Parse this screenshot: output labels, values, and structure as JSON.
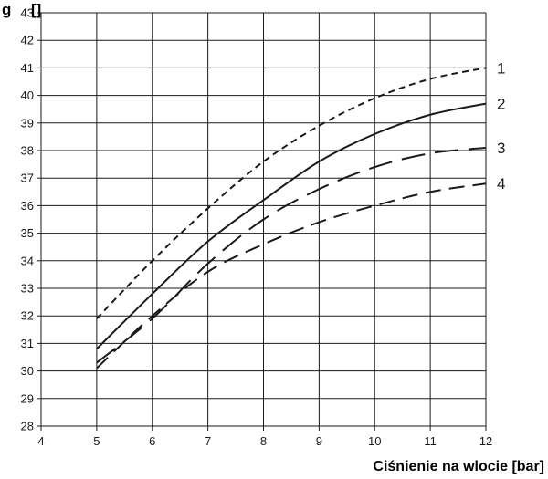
{
  "chart_data": {
    "type": "line",
    "title": "g",
    "title_suffix": "[]",
    "xlabel": "Ciśnienie na wlocie [bar]",
    "ylabel": "",
    "xlim": [
      4,
      12
    ],
    "ylim": [
      28,
      43
    ],
    "x_ticks": [
      4,
      5,
      6,
      7,
      8,
      9,
      10,
      11,
      12
    ],
    "y_ticks": [
      28,
      29,
      30,
      31,
      32,
      33,
      34,
      35,
      36,
      37,
      38,
      39,
      40,
      41,
      42,
      43
    ],
    "grid": true,
    "series": [
      {
        "name": "1",
        "style": "short-dash",
        "color": "#1a1a1a",
        "points": [
          [
            5,
            31.9
          ],
          [
            6,
            34.0
          ],
          [
            7,
            35.9
          ],
          [
            8,
            37.6
          ],
          [
            9,
            38.9
          ],
          [
            10,
            39.9
          ],
          [
            11,
            40.6
          ],
          [
            12,
            41.0
          ]
        ]
      },
      {
        "name": "2",
        "style": "solid",
        "color": "#1a1a1a",
        "points": [
          [
            5,
            30.8
          ],
          [
            6,
            32.8
          ],
          [
            7,
            34.7
          ],
          [
            8,
            36.2
          ],
          [
            9,
            37.6
          ],
          [
            10,
            38.6
          ],
          [
            11,
            39.3
          ],
          [
            12,
            39.7
          ]
        ]
      },
      {
        "name": "3",
        "style": "long-dash",
        "color": "#1a1a1a",
        "points": [
          [
            5,
            30.3
          ],
          [
            6,
            31.9
          ],
          [
            7,
            33.9
          ],
          [
            8,
            35.5
          ],
          [
            9,
            36.6
          ],
          [
            10,
            37.4
          ],
          [
            11,
            37.9
          ],
          [
            12,
            38.1
          ]
        ]
      },
      {
        "name": "4",
        "style": "dash",
        "color": "#1a1a1a",
        "points": [
          [
            5,
            30.1
          ],
          [
            6,
            32.0
          ],
          [
            7,
            33.6
          ],
          [
            8,
            34.6
          ],
          [
            9,
            35.4
          ],
          [
            10,
            36.0
          ],
          [
            11,
            36.5
          ],
          [
            12,
            36.8
          ]
        ]
      }
    ]
  }
}
